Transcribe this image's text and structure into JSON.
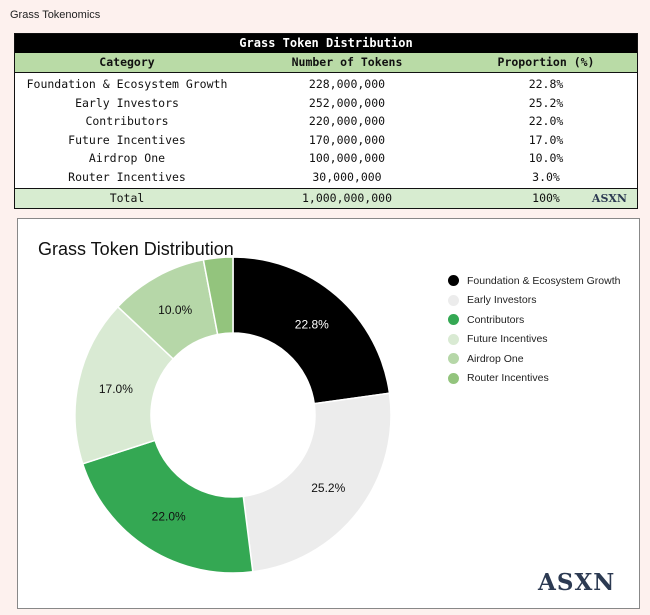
{
  "page_title": "Grass Tokenomics",
  "table": {
    "title": "Grass Token Distribution",
    "headers": [
      "Category",
      "Number of Tokens",
      "Proportion (%)"
    ],
    "rows": [
      {
        "category": "Foundation & Ecosystem Growth",
        "tokens": "228,000,000",
        "proportion": "22.8%"
      },
      {
        "category": "Early Investors",
        "tokens": "252,000,000",
        "proportion": "25.2%"
      },
      {
        "category": "Contributors",
        "tokens": "220,000,000",
        "proportion": "22.0%"
      },
      {
        "category": "Future Incentives",
        "tokens": "170,000,000",
        "proportion": "17.0%"
      },
      {
        "category": "Airdrop One",
        "tokens": "100,000,000",
        "proportion": "10.0%"
      },
      {
        "category": "Router Incentives",
        "tokens": "30,000,000",
        "proportion": "3.0%"
      }
    ],
    "total": {
      "category": "Total",
      "tokens": "1,000,000,000",
      "proportion": "100%"
    },
    "watermark": "ASXN"
  },
  "chart_watermark": "ASXN",
  "chart_data": {
    "type": "pie",
    "title": "Grass Token Distribution",
    "categories": [
      "Foundation & Ecosystem Growth",
      "Early Investors",
      "Contributors",
      "Future Incentives",
      "Airdrop One",
      "Router Incentives"
    ],
    "values": [
      22.8,
      25.2,
      22.0,
      17.0,
      10.0,
      3.0
    ],
    "labels": [
      "22.8%",
      "25.2%",
      "22.0%",
      "17.0%",
      "10.0%",
      ""
    ],
    "colors": [
      "#000000",
      "#ececec",
      "#34a853",
      "#d9ead3",
      "#b6d7a8",
      "#93c47d"
    ],
    "donut": true,
    "legend_position": "right"
  }
}
